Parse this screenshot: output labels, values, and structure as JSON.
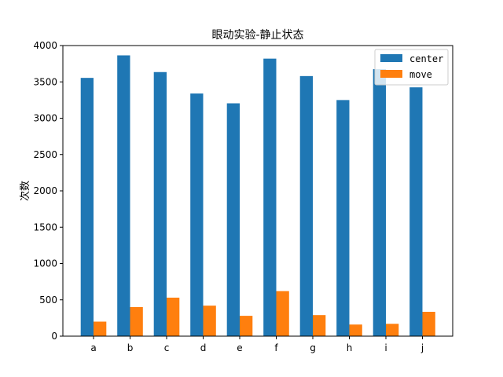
{
  "chart_data": {
    "type": "bar",
    "title": "眼动实验-静止状态",
    "xlabel": "",
    "ylabel": "次数",
    "categories": [
      "a",
      "b",
      "c",
      "d",
      "e",
      "f",
      "g",
      "h",
      "i",
      "j"
    ],
    "series": [
      {
        "name": "center",
        "color": "#1f77b4",
        "values": [
          3555,
          3865,
          3635,
          3340,
          3205,
          3820,
          3580,
          3250,
          3675,
          3425
        ]
      },
      {
        "name": "move",
        "color": "#ff7f0e",
        "values": [
          200,
          400,
          530,
          420,
          280,
          620,
          290,
          160,
          170,
          335
        ]
      }
    ],
    "ylim": [
      0,
      4000
    ],
    "yticks": [
      0,
      500,
      1000,
      1500,
      2000,
      2500,
      3000,
      3500,
      4000
    ],
    "grid": false,
    "legend_position": "top-right"
  }
}
